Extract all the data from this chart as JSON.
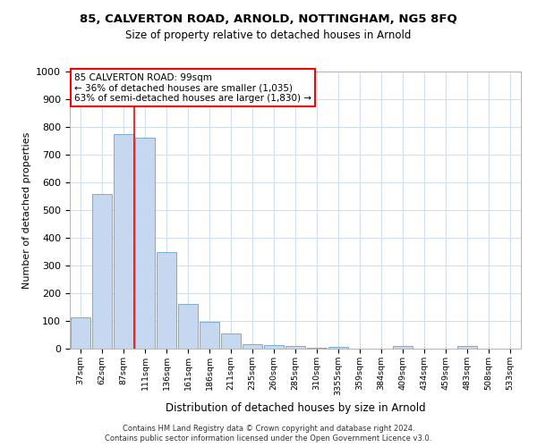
{
  "title_line1": "85, CALVERTON ROAD, ARNOLD, NOTTINGHAM, NG5 8FQ",
  "title_line2": "Size of property relative to detached houses in Arnold",
  "xlabel": "Distribution of detached houses by size in Arnold",
  "ylabel": "Number of detached properties",
  "categories": [
    "37sqm",
    "62sqm",
    "87sqm",
    "111sqm",
    "136sqm",
    "161sqm",
    "186sqm",
    "211sqm",
    "235sqm",
    "260sqm",
    "285sqm",
    "310sqm",
    "3355sqm",
    "359sqm",
    "384sqm",
    "409sqm",
    "434sqm",
    "459sqm",
    "483sqm",
    "508sqm",
    "533sqm"
  ],
  "values": [
    113,
    558,
    775,
    762,
    347,
    160,
    97,
    55,
    17,
    13,
    10,
    4,
    5,
    1,
    0,
    10,
    0,
    0,
    10,
    0,
    0
  ],
  "bar_color": "#c5d8f0",
  "bar_edge_color": "#7aadd4",
  "subject_line_index": 2,
  "subject_label": "85 CALVERTON ROAD: 99sqm",
  "annotation_line2": "← 36% of detached houses are smaller (1,035)",
  "annotation_line3": "63% of semi-detached houses are larger (1,830) →",
  "ylim": [
    0,
    1000
  ],
  "yticks": [
    0,
    100,
    200,
    300,
    400,
    500,
    600,
    700,
    800,
    900,
    1000
  ],
  "bg_color": "#ffffff",
  "plot_bg_color": "#ffffff",
  "grid_color": "#d0dff0",
  "footer_line1": "Contains HM Land Registry data © Crown copyright and database right 2024.",
  "footer_line2": "Contains public sector information licensed under the Open Government Licence v3.0."
}
